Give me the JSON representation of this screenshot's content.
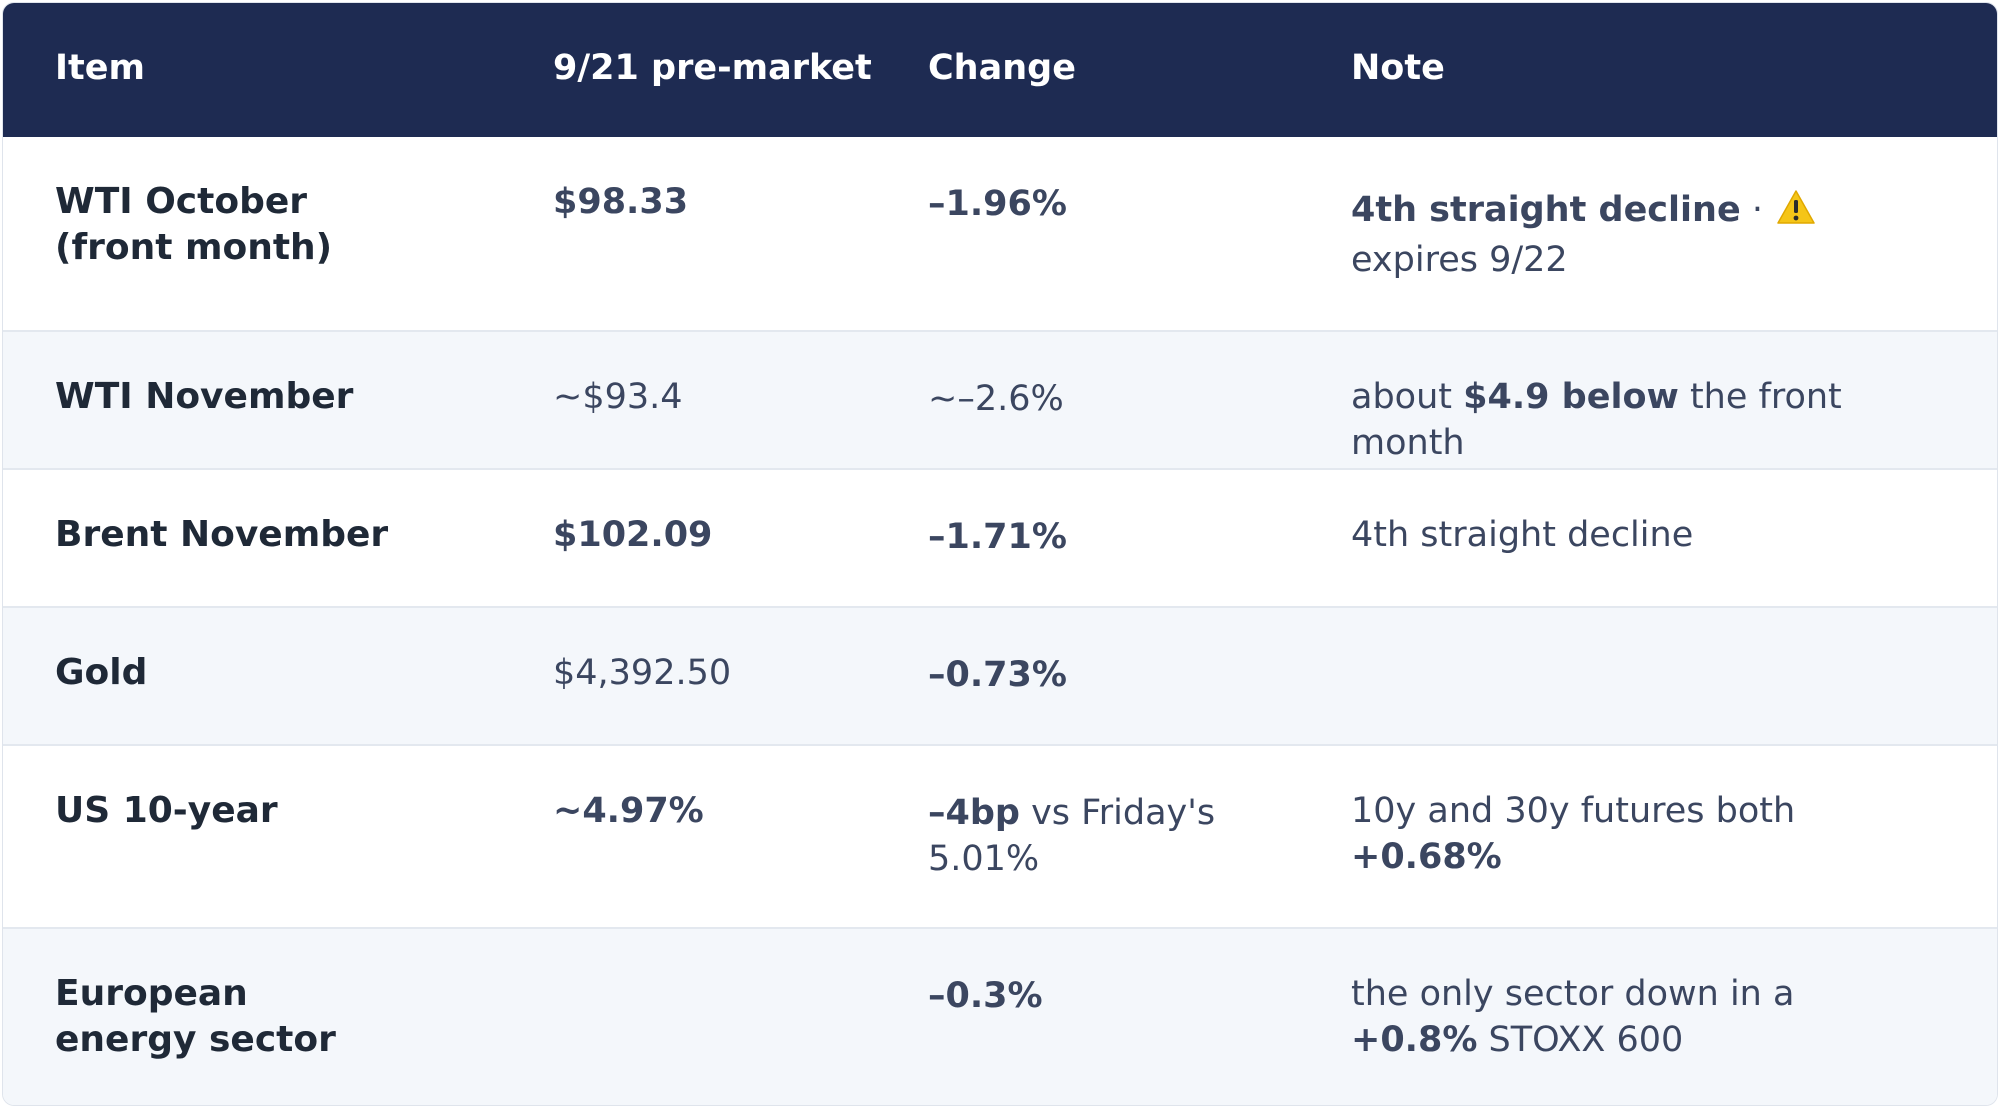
{
  "header": {
    "col_item": "Item",
    "col_premarket": "9/21 pre-market",
    "col_change": "Change",
    "col_note": "Note"
  },
  "rows": [
    {
      "item": "WTI October (front month)",
      "premarket": "$98.33",
      "change": "–1.96%",
      "note_bold": "4th straight decline",
      "note_sep": " · ",
      "note_icon": "warning-icon",
      "note_rest": " expires 9/22"
    },
    {
      "item": "WTI November",
      "premarket": "~$93.4",
      "change": "~–2.6%",
      "note_pre": "about ",
      "note_bold": "$4.9 below",
      "note_post": " the front month"
    },
    {
      "item": "Brent November",
      "premarket": "$102.09",
      "change": "–1.71%",
      "note": "4th straight decline"
    },
    {
      "item": "Gold",
      "premarket": "$4,392.50",
      "change": "–0.73%",
      "note": ""
    },
    {
      "item": "US 10-year",
      "premarket": "~4.97%",
      "change_bold": "–4bp",
      "change_rest": " vs Friday's 5.01%",
      "note_pre": "10y and 30y futures both ",
      "note_bold": "+0.68%"
    },
    {
      "item": "European energy sector",
      "premarket": "",
      "change": "–0.3%",
      "note_pre": "the only sector down in a ",
      "note_bold": "+0.8%",
      "note_post": " STOXX 600"
    }
  ],
  "colors": {
    "header_bg": "#1e2b52",
    "alt_row_bg": "#f4f7fb",
    "warning": "#f5c518"
  }
}
